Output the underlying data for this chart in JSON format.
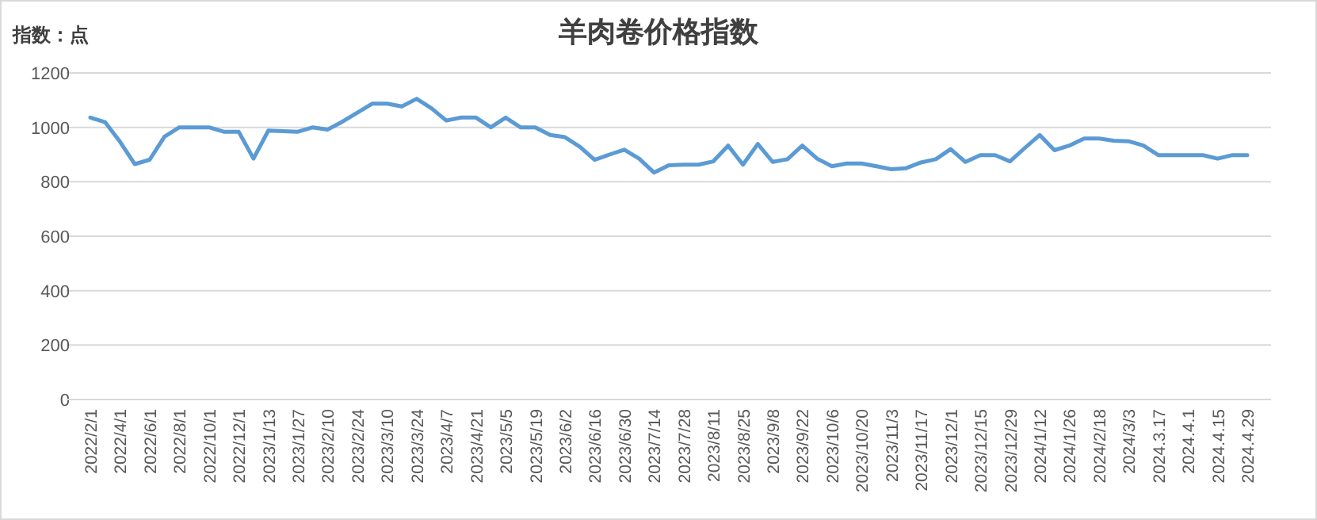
{
  "chart_data": {
    "type": "line",
    "title": "羊肉卷价格指数",
    "ylabel": "指数：点",
    "categories": [
      "2022/2/1",
      null,
      "2022/4/1",
      null,
      "2022/6/1",
      null,
      "2022/8/1",
      null,
      "2022/10/1",
      null,
      "2022/12/1",
      null,
      "2023/1/13",
      null,
      "2023/1/27",
      null,
      "2023/2/10",
      null,
      "2023/2/24",
      null,
      "2023/3/10",
      null,
      "2023/3/24",
      null,
      "2023/4/7",
      null,
      "2023/4/21",
      null,
      "2023/5/5",
      null,
      "2023/5/19",
      null,
      "2023/6/2",
      null,
      "2023/6/16",
      null,
      "2023/6/30",
      null,
      "2023/7/14",
      null,
      "2023/7/28",
      null,
      "2023/8/11",
      null,
      "2023/8/25",
      null,
      "2023/9/8",
      null,
      "2023/9/22",
      null,
      "2023/10/6",
      null,
      "2023/10/20",
      null,
      "2023/11/3",
      null,
      "2023/11/17",
      null,
      "2023/12/1",
      null,
      "2023/12/15",
      null,
      "2023/12/29",
      null,
      "2024/1/12",
      null,
      "2024/1/26",
      null,
      "2024/2/18",
      null,
      "2024/3/3",
      null,
      "2024.3.17",
      null,
      "2024.4.1",
      null,
      "2024.4.15",
      null,
      "2024.4.29"
    ],
    "series": [
      {
        "color": "#5b9bd5",
        "values": [
          1036,
          1019,
          947,
          865,
          881,
          966,
          1000,
          1000,
          1000,
          984,
          984,
          885,
          988,
          986,
          984,
          1000,
          992,
          1021,
          1054,
          1087,
          1087,
          1077,
          1105,
          1070,
          1025,
          1036,
          1036,
          1000,
          1036,
          1000,
          1000,
          972,
          964,
          929,
          881,
          900,
          918,
          885,
          834,
          861,
          863,
          863,
          875,
          933,
          863,
          939,
          873,
          883,
          933,
          885,
          857,
          867,
          867,
          857,
          846,
          850,
          871,
          883,
          920,
          873,
          898,
          898,
          875,
          924,
          972,
          916,
          933,
          959,
          959,
          951,
          949,
          933,
          898,
          898,
          898,
          898,
          885,
          898,
          898
        ]
      }
    ],
    "ylim": [
      0,
      1200
    ],
    "yticks": [
      0,
      200,
      400,
      600,
      800,
      1000,
      1200
    ],
    "grid": "y",
    "marker": "none",
    "line_style": "solid"
  }
}
